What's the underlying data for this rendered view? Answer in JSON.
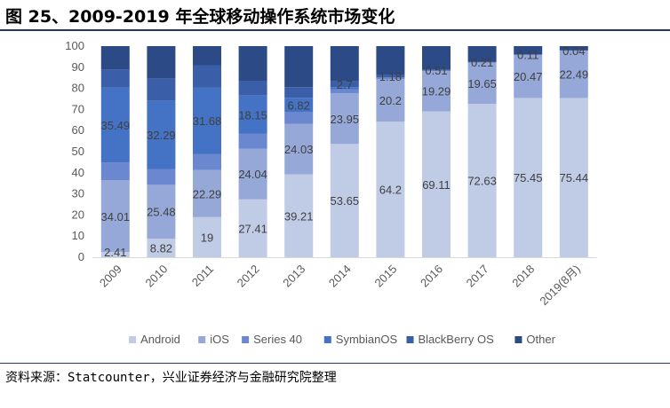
{
  "title": "图 25、2009-2019 年全球移动操作系统市场变化",
  "source": "资料来源：Statcounter，兴业证券经济与金融研究院整理",
  "chart_data": {
    "type": "bar",
    "stacked": true,
    "categories": [
      "2009",
      "2010",
      "2011",
      "2012",
      "2013",
      "2014",
      "2015",
      "2016",
      "2017",
      "2018",
      "2019(8月)"
    ],
    "ylim": [
      0,
      100
    ],
    "yticks": [
      0,
      10,
      20,
      30,
      40,
      50,
      60,
      70,
      80,
      90,
      100
    ],
    "grid": false,
    "legend_position": "bottom",
    "series": [
      {
        "name": "Android",
        "color": "#c0cbe6",
        "values": [
          2.41,
          8.82,
          19,
          27.41,
          39.21,
          53.65,
          64.2,
          69.11,
          72.63,
          75.45,
          75.44
        ],
        "labels": [
          "2.41",
          "8.82",
          "19",
          "27.41",
          "39.21",
          "53.65",
          "64.2",
          "69.11",
          "72.63",
          "75.45",
          "75.44"
        ]
      },
      {
        "name": "iOS",
        "color": "#95a8d8",
        "values": [
          34.01,
          25.48,
          22.29,
          24.04,
          24.03,
          23.95,
          20.2,
          19.29,
          19.65,
          20.47,
          22.49
        ],
        "labels": [
          "34.01",
          "25.48",
          "22.29",
          "24.04",
          "24.03",
          "23.95",
          "20.2",
          "19.29",
          "19.65",
          "20.47",
          "22.49"
        ]
      },
      {
        "name": "Series 40",
        "color": "#6a87d0",
        "values": [
          8.5,
          7.5,
          7.5,
          7.0,
          5.5,
          2.0,
          0.5,
          0,
          0,
          0,
          0
        ],
        "labels": [
          "",
          "",
          "",
          "",
          "",
          "",
          "",
          "",
          "",
          "",
          ""
        ]
      },
      {
        "name": "SymbianOS",
        "color": "#4472c4",
        "values": [
          35.49,
          32.29,
          31.68,
          18.15,
          6.82,
          1.0,
          0.3,
          0,
          0,
          0,
          0
        ],
        "labels": [
          "35.49",
          "32.29",
          "31.68",
          "18.15",
          "6.82",
          "",
          "",
          "",
          "",
          "",
          ""
        ]
      },
      {
        "name": "BlackBerry OS",
        "color": "#3a5fa8",
        "values": [
          8.5,
          10.5,
          10.5,
          7.0,
          5.0,
          2.7,
          1.18,
          0.51,
          0.21,
          0.11,
          0.04
        ],
        "labels": [
          "",
          "",
          "",
          "",
          "",
          "2.7",
          "1.18",
          "0.51",
          "0.21",
          "0.11",
          "0.04"
        ]
      },
      {
        "name": "Other",
        "color": "#2c4a86",
        "values": [
          11.09,
          15.41,
          9.03,
          16.4,
          19.44,
          16.7,
          13.62,
          11.09,
          7.51,
          3.97,
          2.03
        ],
        "labels": [
          "",
          "",
          "",
          "",
          "",
          "",
          "",
          "",
          "",
          "",
          ""
        ]
      }
    ]
  }
}
